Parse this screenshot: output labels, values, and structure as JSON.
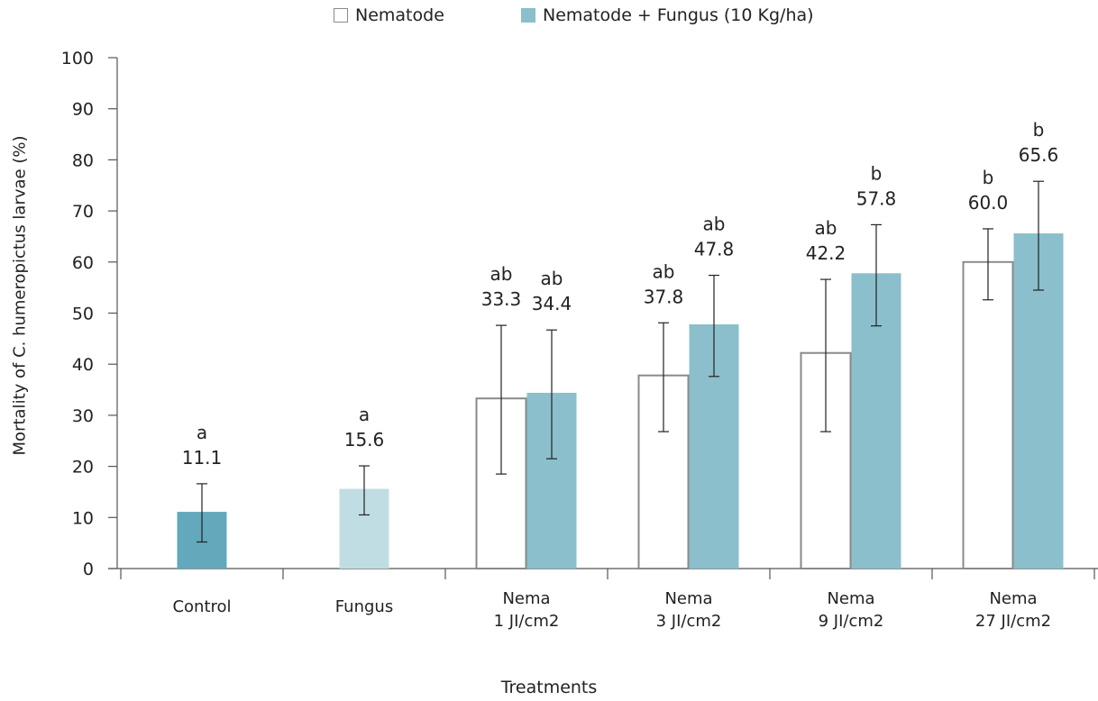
{
  "chart_data": {
    "type": "bar",
    "xlabel": "Treatments",
    "ylabel": "Mortality of C. humeropictus larvae (%)",
    "ylim": [
      0,
      100
    ],
    "yticks": [
      0,
      10,
      20,
      30,
      40,
      50,
      60,
      70,
      80,
      90,
      100
    ],
    "legend_position": "top-center",
    "legend": [
      {
        "name": "Nematode",
        "fill": "#ffffff",
        "stroke": "#8a8a8a"
      },
      {
        "name": "Nematode + Fungus (10 Kg/ha)",
        "fill": "#8bbfcb",
        "stroke": "#8bbfcb"
      }
    ],
    "categories": [
      {
        "label": [
          "Control"
        ]
      },
      {
        "label": [
          "Fungus"
        ]
      },
      {
        "label": [
          "Nema",
          "1 JI/cm2"
        ]
      },
      {
        "label": [
          "Nema",
          "3 JI/cm2"
        ]
      },
      {
        "label": [
          "Nema",
          "9 JI/cm2"
        ]
      },
      {
        "label": [
          "Nema",
          "27 JI/cm2"
        ]
      }
    ],
    "bars": [
      {
        "category": 0,
        "slot": "single",
        "series": "Control",
        "value": 11.1,
        "err_low": 5.2,
        "err_high": 16.6,
        "letter": "a",
        "value_label": "11.1",
        "fill": "#63a8bb",
        "stroke": "#63a8bb"
      },
      {
        "category": 1,
        "slot": "single",
        "series": "Fungus",
        "value": 15.6,
        "err_low": 10.5,
        "err_high": 20.1,
        "letter": "a",
        "value_label": "15.6",
        "fill": "#c0dde3",
        "stroke": "#c0dde3"
      },
      {
        "category": 2,
        "slot": "left",
        "series": "Nematode",
        "value": 33.3,
        "err_low": 18.5,
        "err_high": 47.6,
        "letter": "ab",
        "value_label": "33.3",
        "fill": "#ffffff",
        "stroke": "#8a8a8a"
      },
      {
        "category": 2,
        "slot": "right",
        "series": "Nematode + Fungus (10 Kg/ha)",
        "value": 34.4,
        "err_low": 21.5,
        "err_high": 46.7,
        "letter": "ab",
        "value_label": "34.4",
        "fill": "#8bbfcb",
        "stroke": "#8bbfcb"
      },
      {
        "category": 3,
        "slot": "left",
        "series": "Nematode",
        "value": 37.8,
        "err_low": 26.8,
        "err_high": 48.1,
        "letter": "ab",
        "value_label": "37.8",
        "fill": "#ffffff",
        "stroke": "#8a8a8a"
      },
      {
        "category": 3,
        "slot": "right",
        "series": "Nematode + Fungus (10 Kg/ha)",
        "value": 47.8,
        "err_low": 37.6,
        "err_high": 57.4,
        "letter": "ab",
        "value_label": "47.8",
        "fill": "#8bbfcb",
        "stroke": "#8bbfcb"
      },
      {
        "category": 4,
        "slot": "left",
        "series": "Nematode",
        "value": 42.2,
        "err_low": 26.8,
        "err_high": 56.6,
        "letter": "ab",
        "value_label": "42.2",
        "fill": "#ffffff",
        "stroke": "#8a8a8a"
      },
      {
        "category": 4,
        "slot": "right",
        "series": "Nematode + Fungus (10 Kg/ha)",
        "value": 57.8,
        "err_low": 47.5,
        "err_high": 67.3,
        "letter": "b",
        "value_label": "57.8",
        "fill": "#8bbfcb",
        "stroke": "#8bbfcb"
      },
      {
        "category": 5,
        "slot": "left",
        "series": "Nematode",
        "value": 60.0,
        "err_low": 52.6,
        "err_high": 66.5,
        "letter": "b",
        "value_label": "60.0",
        "fill": "#ffffff",
        "stroke": "#8a8a8a"
      },
      {
        "category": 5,
        "slot": "right",
        "series": "Nematode + Fungus (10 Kg/ha)",
        "value": 65.6,
        "err_low": 54.5,
        "err_high": 75.8,
        "letter": "b",
        "value_label": "65.6",
        "fill": "#8bbfcb",
        "stroke": "#8bbfcb"
      }
    ]
  }
}
